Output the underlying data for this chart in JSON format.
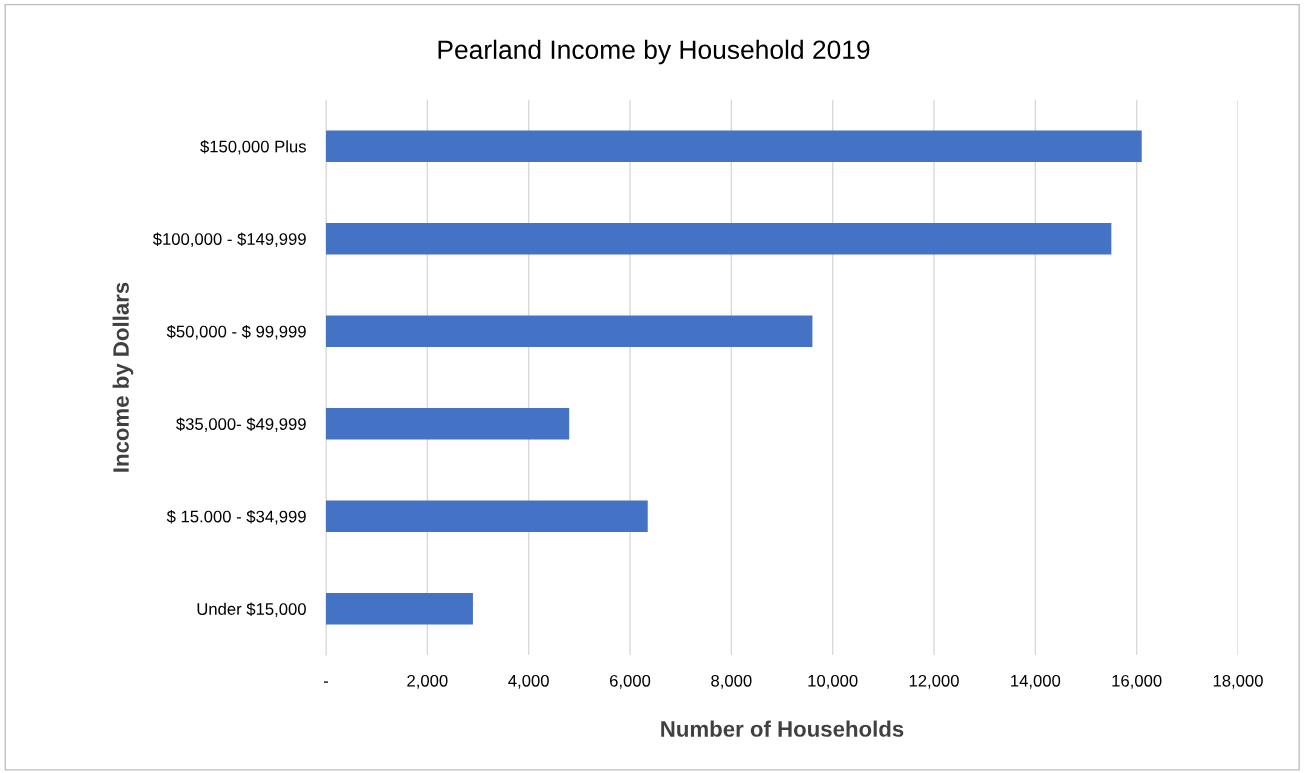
{
  "chart_data": {
    "type": "bar",
    "orientation": "horizontal",
    "title": "Pearland Income by Household 2019",
    "xlabel": "Number of Households",
    "ylabel": "Income by Dollars",
    "categories": [
      "$150,000 Plus",
      "$100,000 - $149,999",
      "$50,000 - $ 99,999",
      "$35,000- $49,999",
      "$ 15.000 - $34,999",
      "Under $15,000"
    ],
    "values": [
      16100,
      15500,
      9600,
      4800,
      6350,
      2900
    ],
    "color": "#4472c4",
    "xlim": [
      0,
      18000
    ],
    "xticks": [
      {
        "value": 0,
        "label": "-"
      },
      {
        "value": 2000,
        "label": "2,000"
      },
      {
        "value": 4000,
        "label": "4,000"
      },
      {
        "value": 6000,
        "label": "6,000"
      },
      {
        "value": 8000,
        "label": "8,000"
      },
      {
        "value": 10000,
        "label": "10,000"
      },
      {
        "value": 12000,
        "label": "12,000"
      },
      {
        "value": 14000,
        "label": "14,000"
      },
      {
        "value": 16000,
        "label": "16,000"
      },
      {
        "value": 18000,
        "label": "18,000"
      }
    ],
    "grid": "x",
    "legend": false
  }
}
